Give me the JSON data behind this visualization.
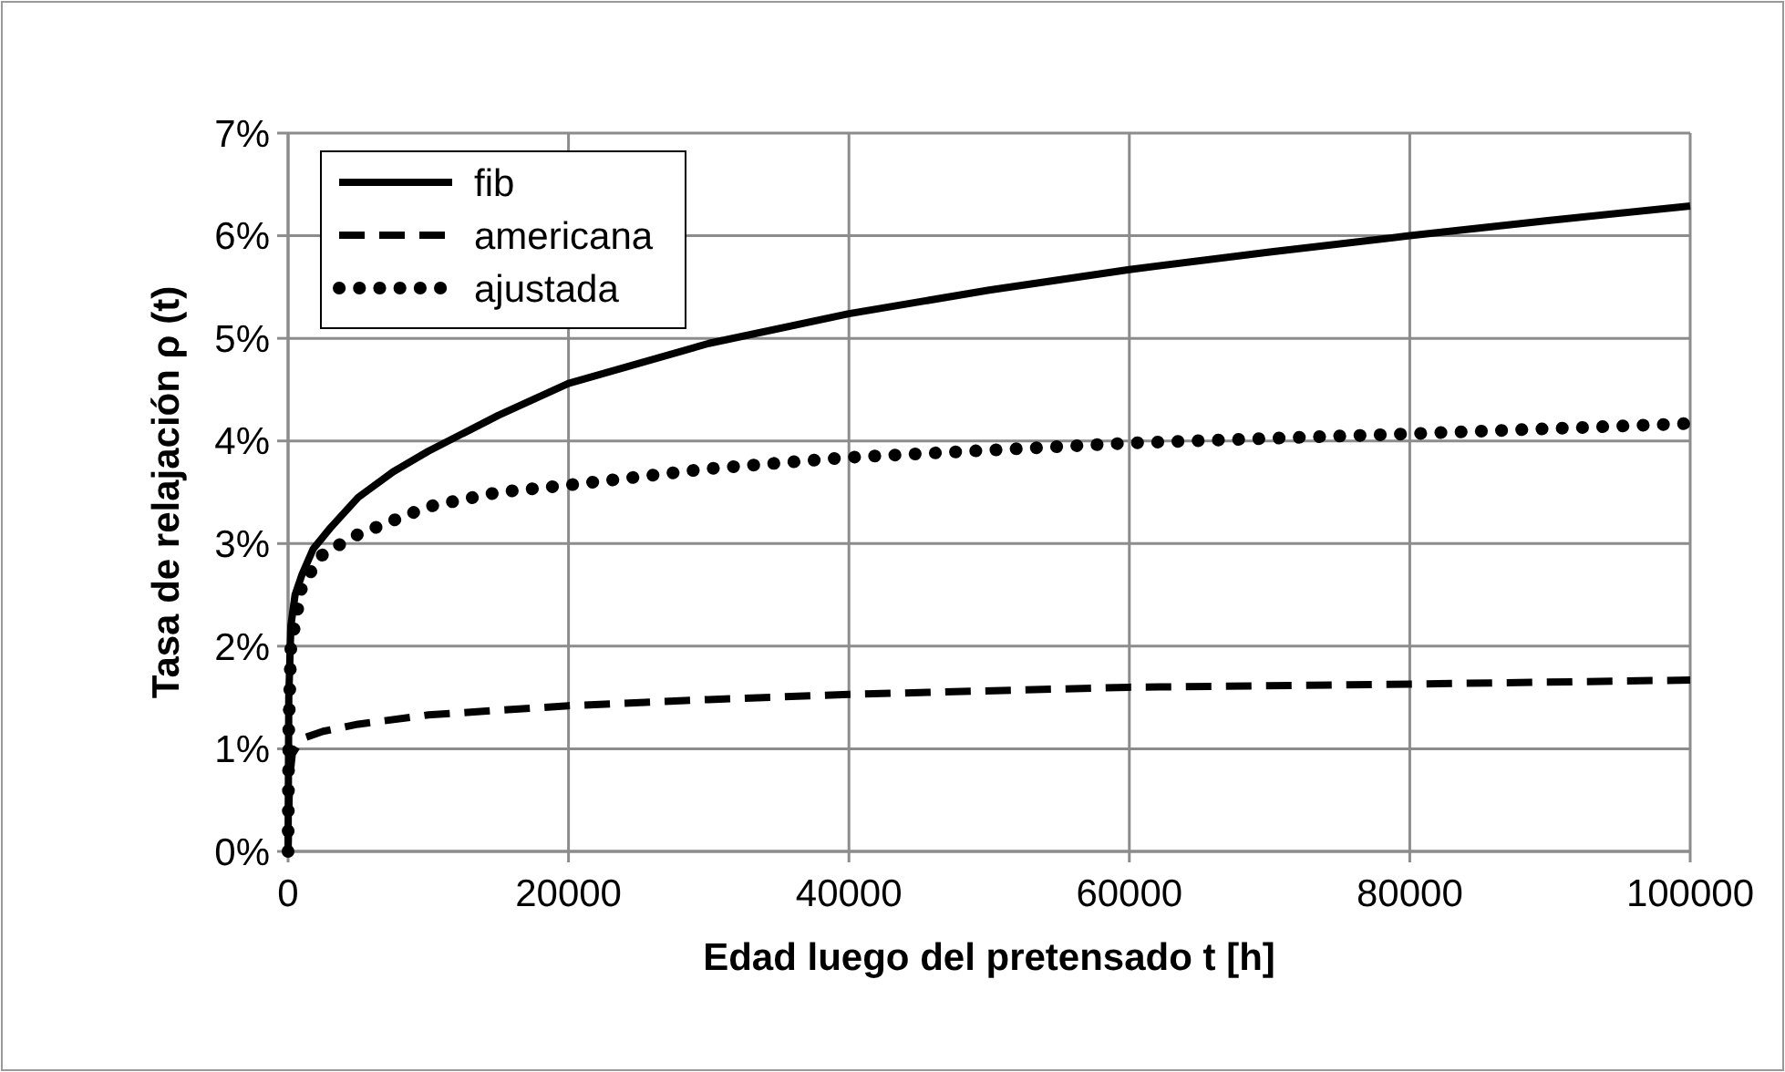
{
  "chart_data": {
    "type": "line",
    "xlabel": "Edad luego del pretensado t [h]",
    "ylabel": "Tasa de relajación ρ (t)",
    "xlim": [
      0,
      100000
    ],
    "xticks": [
      0,
      20000,
      40000,
      60000,
      80000,
      100000
    ],
    "ylim": [
      0,
      0.07
    ],
    "yticks": [
      {
        "value": 0,
        "label": "0%"
      },
      {
        "value": 0.01,
        "label": "1%"
      },
      {
        "value": 0.02,
        "label": "2%"
      },
      {
        "value": 0.03,
        "label": "3%"
      },
      {
        "value": 0.04,
        "label": "4%"
      },
      {
        "value": 0.05,
        "label": "5%"
      },
      {
        "value": 0.06,
        "label": "6%"
      },
      {
        "value": 0.07,
        "label": "7%"
      }
    ],
    "grid": true,
    "legend": "top left",
    "series": [
      {
        "name": "fib",
        "color": "#000000",
        "line_style": "solid",
        "x": [
          0,
          50,
          200,
          500,
          1000,
          1800,
          3000,
          5000,
          7500,
          10000,
          15000,
          20000,
          30000,
          40000,
          50000,
          60000,
          70000,
          80000,
          90000,
          100000
        ],
        "values": [
          0,
          0.015,
          0.022,
          0.025,
          0.027,
          0.0295,
          0.0315,
          0.0345,
          0.037,
          0.039,
          0.0425,
          0.0456,
          0.0495,
          0.0524,
          0.0547,
          0.0567,
          0.0584,
          0.06,
          0.0615,
          0.0629
        ]
      },
      {
        "name": "americana",
        "color": "#000000",
        "line_style": "dashed",
        "x": [
          0,
          100,
          300,
          1000,
          2500,
          5000,
          10000,
          20000,
          30000,
          40000,
          60000,
          80000,
          100000
        ],
        "values": [
          0,
          0.007,
          0.0095,
          0.011,
          0.0117,
          0.0124,
          0.0133,
          0.0142,
          0.0148,
          0.0153,
          0.016,
          0.0163,
          0.0167
        ]
      },
      {
        "name": "ajustada",
        "color": "#000000",
        "line_style": "dotted",
        "x": [
          0,
          50,
          200,
          1000,
          2500,
          5000,
          10000,
          15000,
          20000,
          30000,
          40000,
          60000,
          80000,
          100000
        ],
        "values": [
          0,
          0.012,
          0.02,
          0.026,
          0.029,
          0.0309,
          0.0336,
          0.035,
          0.0357,
          0.0373,
          0.0384,
          0.0398,
          0.0407,
          0.0417
        ]
      }
    ]
  }
}
